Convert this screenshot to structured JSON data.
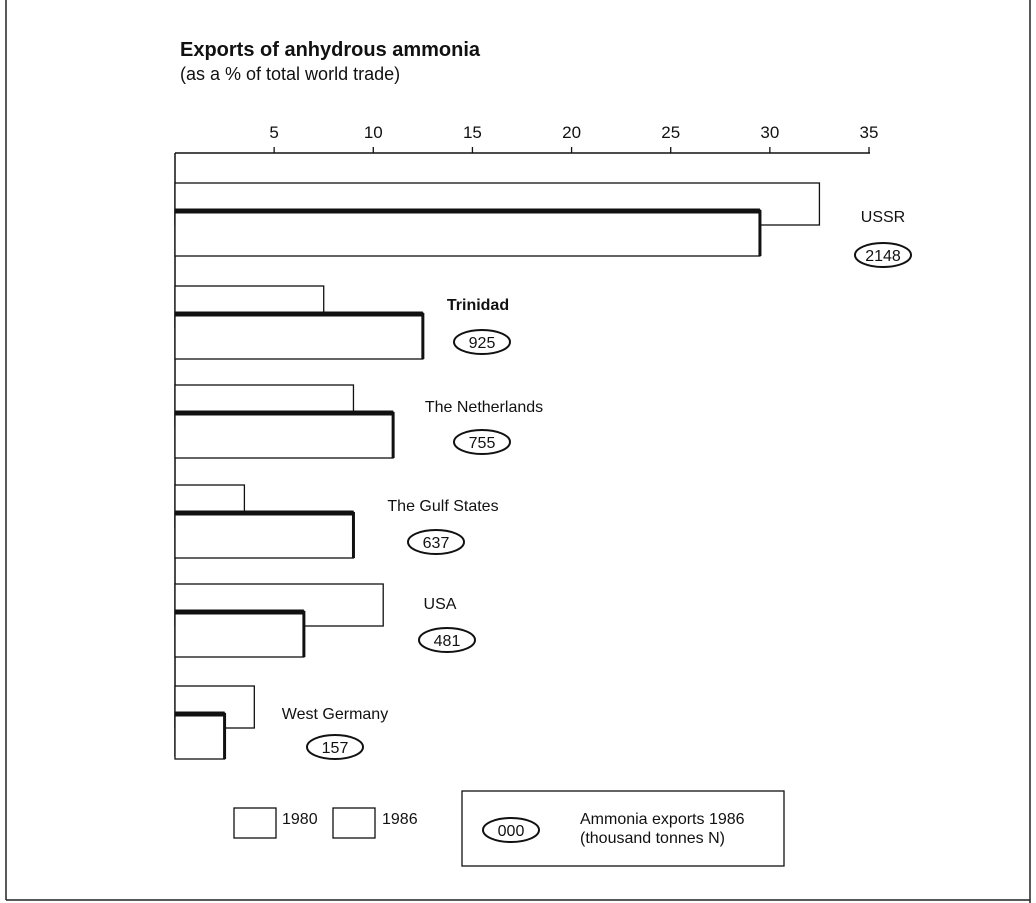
{
  "chart_data": {
    "type": "bar",
    "orientation": "horizontal",
    "title": "Exports of anhydrous ammonia",
    "subtitle": "(as a % of total world trade)",
    "xlim": [
      0,
      35
    ],
    "x_ticks": [
      "5",
      "10",
      "15",
      "20",
      "25",
      "30",
      "35"
    ],
    "tick_values": [
      5,
      10,
      15,
      20,
      25,
      30,
      35
    ],
    "categories": [
      "USSR",
      "Trinidad",
      "The Netherlands",
      "The Gulf States",
      "USA",
      "West Germany"
    ],
    "series": [
      {
        "name": "1980",
        "values": [
          32.5,
          7.5,
          9.0,
          3.5,
          10.5,
          4.0
        ]
      },
      {
        "name": "1986",
        "values": [
          29.5,
          12.5,
          11.0,
          9.0,
          6.5,
          2.5
        ]
      }
    ],
    "exports_1986_thousand_tonnes": [
      "2148",
      "925",
      "755",
      "637",
      "481",
      "157"
    ],
    "legend": {
      "items": [
        "1980",
        "1986"
      ],
      "oval_sample": "000",
      "oval_label_line1": "Ammonia exports 1986",
      "oval_label_line2": "(thousand tonnes N)"
    },
    "grid": false
  }
}
